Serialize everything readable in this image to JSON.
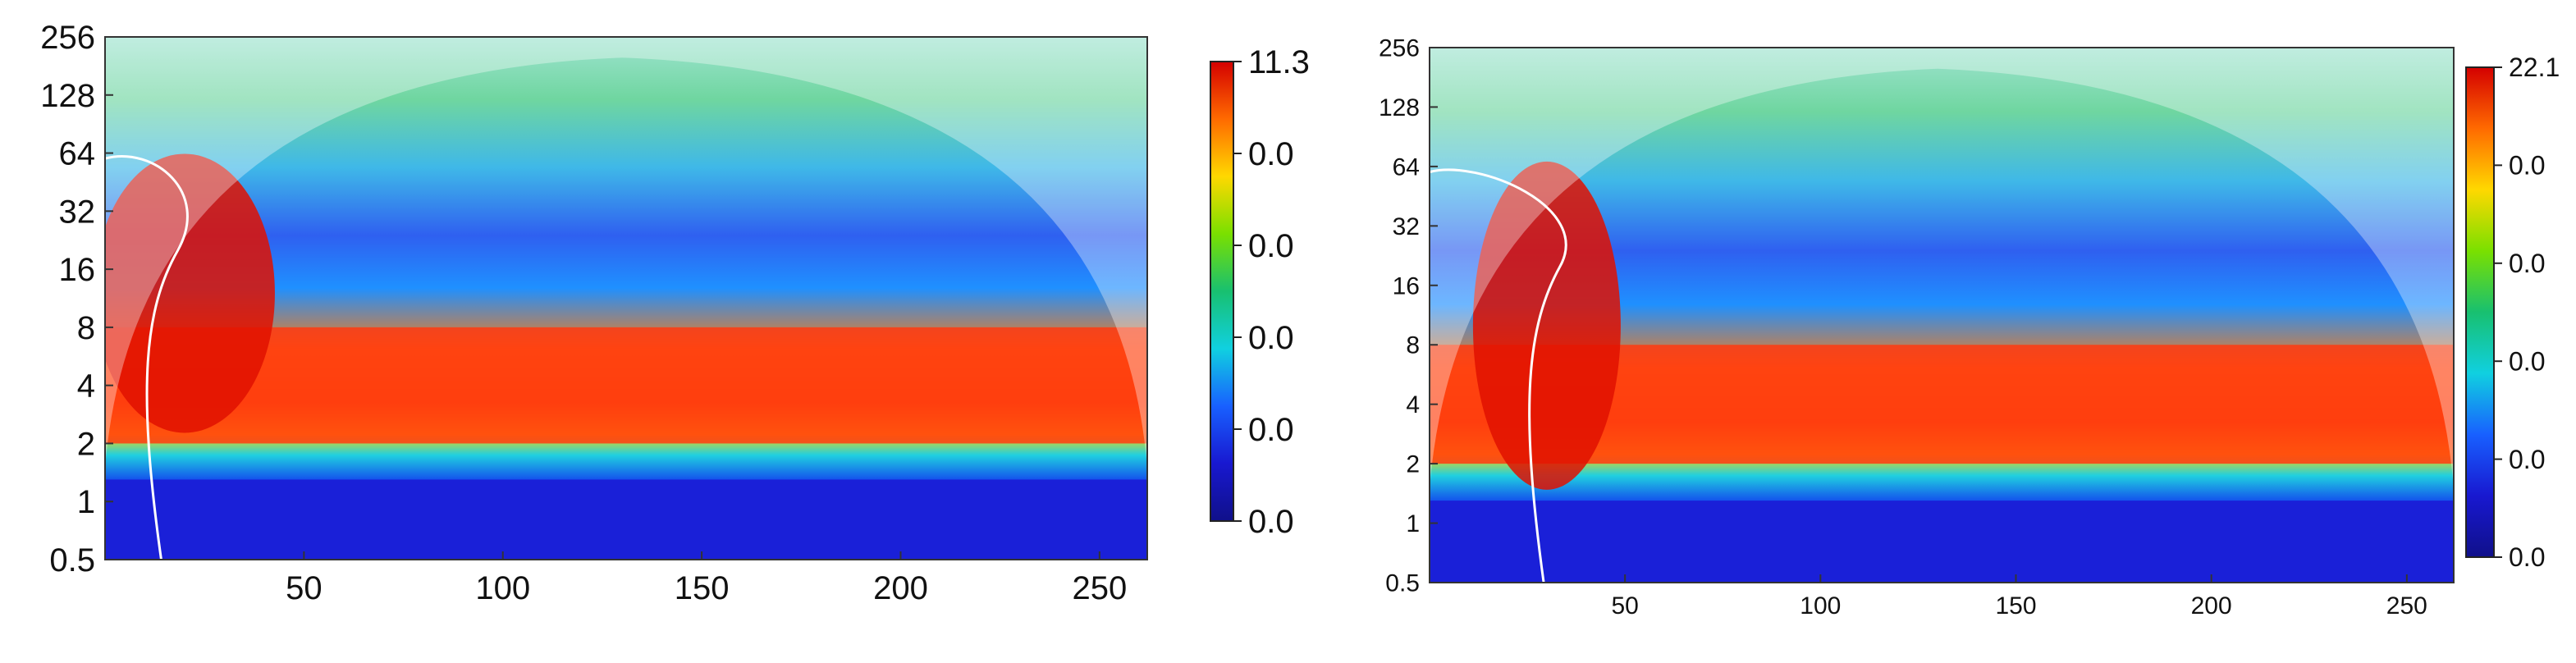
{
  "chart_data": [
    {
      "type": "heatmap",
      "title": "",
      "xlabel": "",
      "ylabel": "",
      "x_ticks": [
        "50",
        "100",
        "150",
        "200",
        "250"
      ],
      "x_tick_values": [
        50,
        100,
        150,
        200,
        250
      ],
      "xlim": [
        0,
        262
      ],
      "y_ticks": [
        "0.5",
        "1",
        "2",
        "4",
        "8",
        "16",
        "32",
        "64",
        "128",
        "256"
      ],
      "y_tick_values": [
        0.5,
        1,
        2,
        4,
        8,
        16,
        32,
        64,
        128,
        256
      ],
      "ylim": [
        0.5,
        256
      ],
      "y_scale": "log2",
      "colorbar_labels": [
        "11.3",
        "0.0",
        "0.0",
        "0.0",
        "0.0",
        "0.0"
      ],
      "colorbar_colors": [
        "#d40000",
        "#ff6a00",
        "#ffd800",
        "#7ae000",
        "#18c070",
        "#10d0e0",
        "#1860ff",
        "#1818d0",
        "#10108a"
      ],
      "high_power_band_periods": [
        2,
        8
      ],
      "cone_of_influence_peak_x": 130
    },
    {
      "type": "heatmap",
      "title": "",
      "xlabel": "",
      "ylabel": "",
      "x_ticks": [
        "50",
        "100",
        "150",
        "200",
        "250"
      ],
      "x_tick_values": [
        50,
        100,
        150,
        200,
        250
      ],
      "xlim": [
        0,
        262
      ],
      "y_ticks": [
        "0.5",
        "1",
        "2",
        "4",
        "8",
        "16",
        "32",
        "64",
        "128",
        "256"
      ],
      "y_tick_values": [
        0.5,
        1,
        2,
        4,
        8,
        16,
        32,
        64,
        128,
        256
      ],
      "ylim": [
        0.5,
        256
      ],
      "y_scale": "log2",
      "colorbar_labels": [
        "22.1",
        "0.0",
        "0.0",
        "0.0",
        "0.0",
        "0.0"
      ],
      "colorbar_colors": [
        "#d40000",
        "#ff6a00",
        "#ffd800",
        "#7ae000",
        "#18c070",
        "#10d0e0",
        "#1860ff",
        "#1818d0",
        "#10108a"
      ],
      "high_power_band_periods": [
        2,
        8
      ],
      "cone_of_influence_peak_x": 130
    }
  ]
}
